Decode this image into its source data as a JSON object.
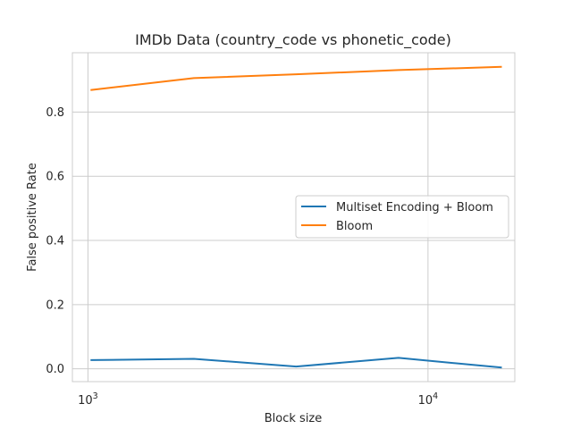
{
  "chart_data": {
    "type": "line",
    "title": "IMDb Data (country_code vs phonetic_code)",
    "xlabel": "Block size",
    "ylabel": "False positive Rate",
    "xscale": "log",
    "xlim": [
      900,
      18000
    ],
    "ylim": [
      -0.04,
      0.985
    ],
    "x": [
      1024,
      2048,
      4096,
      8192,
      16384
    ],
    "xticks": [
      1000,
      10000
    ],
    "xtick_labels": [
      {
        "base": "10",
        "exp": "3"
      },
      {
        "base": "10",
        "exp": "4"
      }
    ],
    "yticks": [
      0.0,
      0.2,
      0.4,
      0.6,
      0.8
    ],
    "ytick_labels": [
      "0.0",
      "0.2",
      "0.4",
      "0.6",
      "0.8"
    ],
    "grid": true,
    "legend_position": "center-right",
    "series": [
      {
        "name": "Multiset Encoding + Bloom",
        "color": "#1f77b4",
        "values": [
          0.027,
          0.031,
          0.007,
          0.034,
          0.004
        ]
      },
      {
        "name": "Bloom",
        "color": "#ff7f0e",
        "values": [
          0.869,
          0.906,
          0.918,
          0.931,
          0.941
        ]
      }
    ]
  }
}
